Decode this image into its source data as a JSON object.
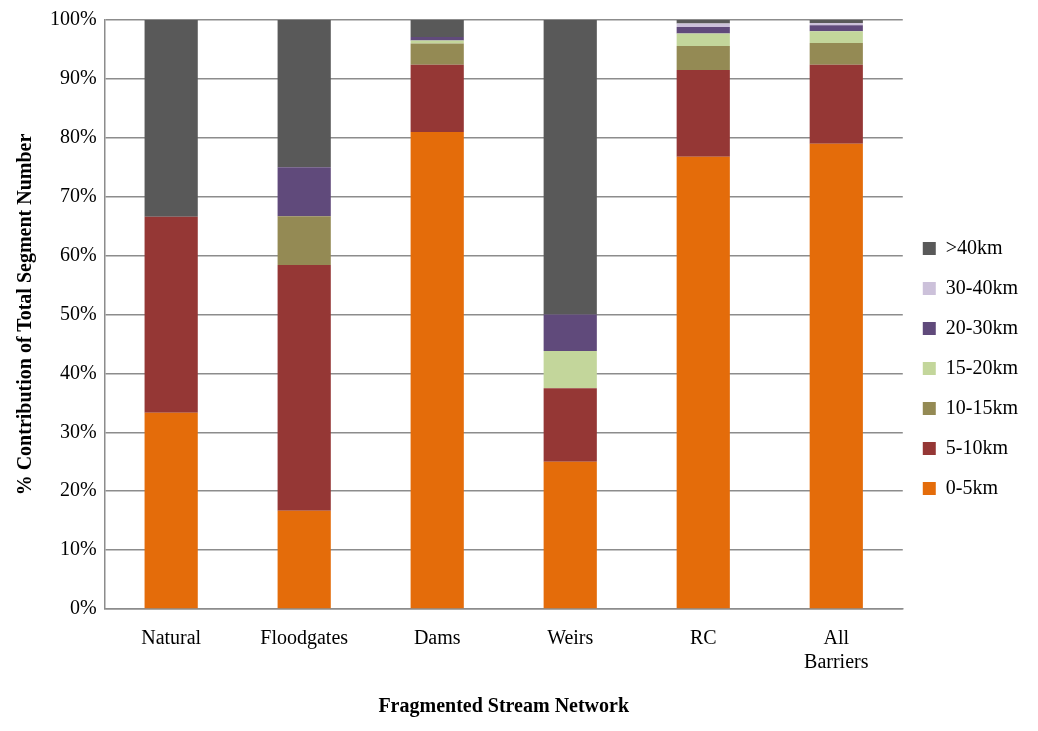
{
  "chart_data": {
    "type": "bar",
    "stacked": true,
    "xlabel": "Fragmented Stream Network",
    "ylabel": "% Contribution of Total Segment Number",
    "categories": [
      "Natural",
      "Floodgates",
      "Dams",
      "Weirs",
      "RC",
      "All Barriers"
    ],
    "series": [
      {
        "name": "0-5km",
        "color": "#e46c0a",
        "values": [
          33.3,
          16.7,
          81.0,
          25.0,
          76.8,
          79.0
        ]
      },
      {
        "name": "5-10km",
        "color": "#953735",
        "values": [
          33.3,
          41.7,
          11.4,
          12.5,
          14.7,
          13.4
        ]
      },
      {
        "name": "10-15km",
        "color": "#948a54",
        "values": [
          0,
          8.3,
          3.6,
          0,
          4.1,
          3.7
        ]
      },
      {
        "name": "15-20km",
        "color": "#c3d69b",
        "values": [
          0,
          0,
          0.5,
          6.3,
          2.1,
          2.0
        ]
      },
      {
        "name": "20-30km",
        "color": "#604a7b",
        "values": [
          0,
          8.3,
          0.6,
          6.2,
          1.1,
          1.0
        ]
      },
      {
        "name": "30-40km",
        "color": "#ccc1da",
        "values": [
          0,
          0,
          0,
          0,
          0.6,
          0.4
        ]
      },
      {
        "name": ">40km",
        "color": "#595959",
        "values": [
          33.4,
          25.0,
          2.9,
          50.0,
          0.6,
          0.5
        ]
      }
    ],
    "ylim": [
      0,
      100
    ],
    "yticks": [
      {
        "value": 0,
        "label": "0%"
      },
      {
        "value": 10,
        "label": "10%"
      },
      {
        "value": 20,
        "label": "20%"
      },
      {
        "value": 30,
        "label": "30%"
      },
      {
        "value": 40,
        "label": "40%"
      },
      {
        "value": 50,
        "label": "50%"
      },
      {
        "value": 60,
        "label": "60%"
      },
      {
        "value": 70,
        "label": "70%"
      },
      {
        "value": 80,
        "label": "80%"
      },
      {
        "value": 90,
        "label": "90%"
      },
      {
        "value": 100,
        "label": "100%"
      }
    ],
    "grid": "y",
    "legend": "right"
  }
}
